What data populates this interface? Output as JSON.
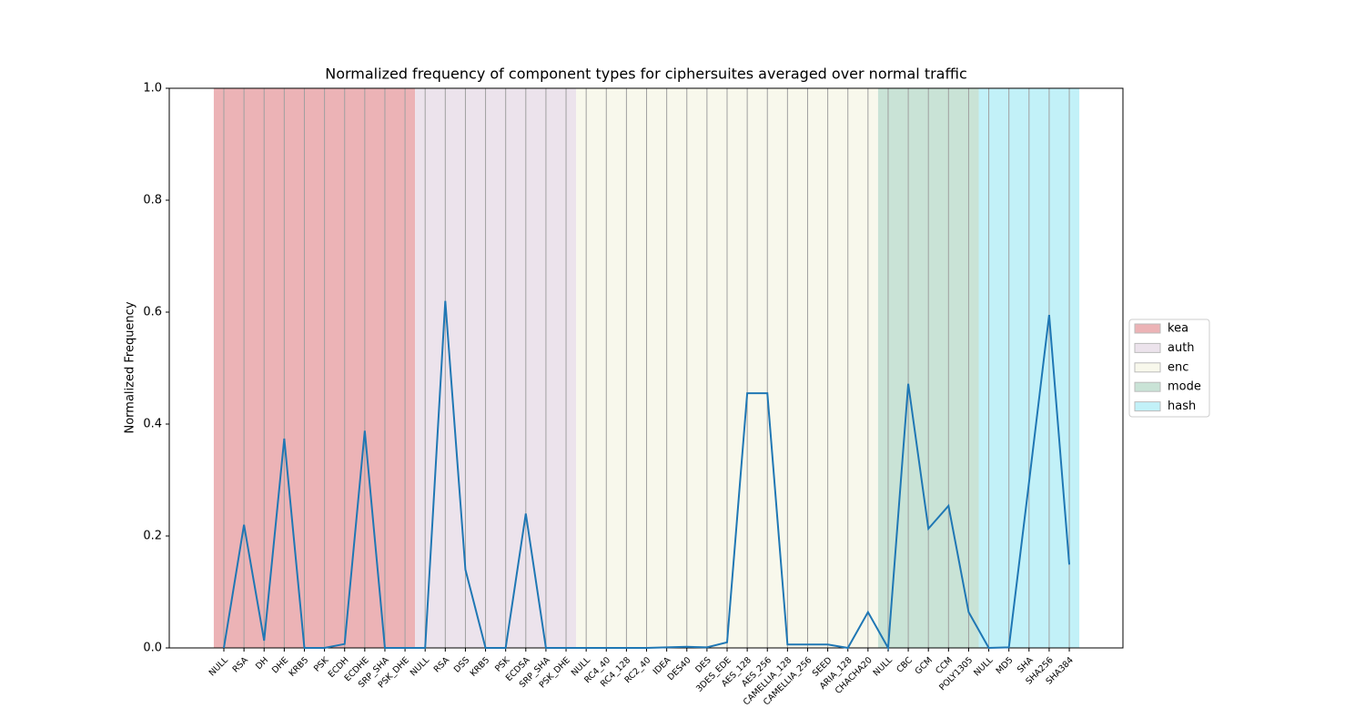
{
  "chart_data": {
    "type": "line",
    "title": "Normalized frequency of component types for ciphersuites averaged over normal traffic",
    "ylabel": "Normalized Frequency",
    "ylim": [
      0,
      1
    ],
    "yticks": [
      {
        "value": 0,
        "label": "0.0"
      },
      {
        "value": 0.2,
        "label": "0.2"
      },
      {
        "value": 0.4,
        "label": "0.4"
      },
      {
        "value": 0.6,
        "label": "0.6"
      },
      {
        "value": 0.8,
        "label": "0.8"
      },
      {
        "value": 1,
        "label": "1.0"
      }
    ],
    "line_color": "#1f77b4",
    "legend": "right",
    "groups": [
      {
        "name": "kea",
        "color": "#ecb3b6",
        "categories": [
          "NULL",
          "RSA",
          "DH",
          "DHE",
          "KRB5",
          "PSK",
          "ECDH",
          "ECDHE",
          "SRP_SHA",
          "PSK_DHE"
        ],
        "label_colors": [
          "#000",
          "#000",
          "#000",
          "#000",
          "#000",
          "#000",
          "#000",
          "#000",
          "#000",
          "#000"
        ],
        "values": [
          0,
          0.22,
          0.013,
          0.374,
          0,
          0,
          0.007,
          0.388,
          0,
          0
        ]
      },
      {
        "name": "auth",
        "color": "#ece3ec",
        "categories": [
          "NULL",
          "RSA",
          "DSS",
          "KRB5",
          "PSK",
          "ECDSA",
          "SRP_SHA",
          "PSK_DHE"
        ],
        "label_colors": [
          "red",
          "green",
          "red",
          "#000",
          "#000",
          "green",
          "#000",
          "#000"
        ],
        "values": [
          0,
          0.62,
          0.14,
          0,
          0,
          0.24,
          0,
          0
        ]
      },
      {
        "name": "enc",
        "color": "#f8f8ec",
        "categories": [
          "NULL",
          "RC4_40",
          "RC4_128",
          "RC2_40",
          "IDEA",
          "DES40",
          "DES",
          "3DES_EDE",
          "AES_128",
          "AES_256",
          "CAMELLIA_128",
          "CAMELLIA_256",
          "SEED",
          "ARIA_128",
          "CHACHA20"
        ],
        "label_colors": [
          "red",
          "red",
          "red",
          "red",
          "red",
          "red",
          "red",
          "red",
          "green",
          "green",
          "red",
          "red",
          "red",
          "red",
          "green"
        ],
        "values": [
          0,
          0,
          0,
          0,
          0.001,
          0.002,
          0.001,
          0.01,
          0.455,
          0.455,
          0.006,
          0.006,
          0.006,
          0,
          0.064
        ]
      },
      {
        "name": "mode",
        "color": "#c9e3d6",
        "categories": [
          "NULL",
          "CBC",
          "GCM",
          "CCM",
          "POLY1305"
        ],
        "label_colors": [
          "#000",
          "#000",
          "#000",
          "#000",
          "#000"
        ],
        "values": [
          0,
          0.472,
          0.213,
          0.254,
          0.064
        ]
      },
      {
        "name": "hash",
        "color": "#c2f1f8",
        "categories": [
          "NULL",
          "MD5",
          "SHA",
          "SHA256",
          "SHA384"
        ],
        "label_colors": [
          "red",
          "red",
          "red",
          "green",
          "green"
        ],
        "values": [
          0,
          0.001,
          0.296,
          0.595,
          0.149
        ]
      }
    ]
  }
}
